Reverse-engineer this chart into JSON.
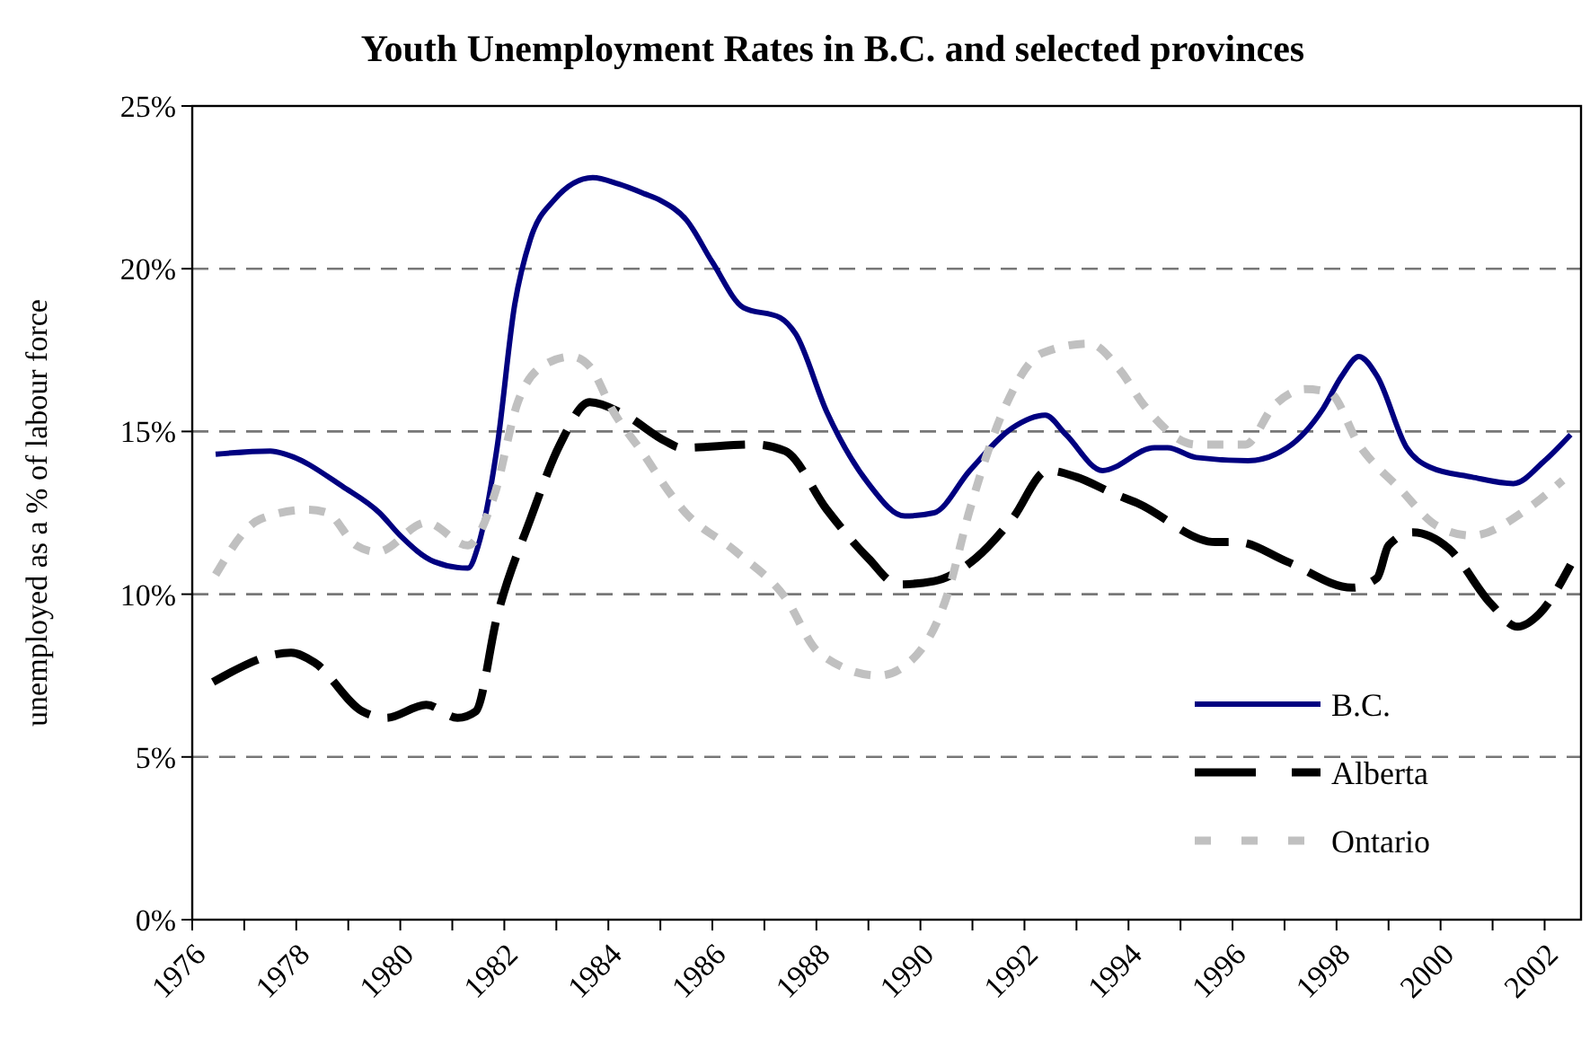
{
  "chart_data": {
    "type": "line",
    "title": "Youth Unemployment Rates in B.C. and selected provinces",
    "ylabel": "unemployed as a % of labour force",
    "xlim": [
      1976,
      2002.7
    ],
    "xticks": [
      1976,
      {
        "value": 1977,
        "label": null
      },
      1978,
      {
        "value": 1979,
        "label": null
      },
      1980,
      {
        "value": 1981,
        "label": null
      },
      1982,
      {
        "value": 1983,
        "label": null
      },
      1984,
      {
        "value": 1985,
        "label": null
      },
      1986,
      {
        "value": 1987,
        "label": null
      },
      1988,
      {
        "value": 1989,
        "label": null
      },
      1990,
      {
        "value": 1991,
        "label": null
      },
      1992,
      {
        "value": 1993,
        "label": null
      },
      1994,
      {
        "value": 1995,
        "label": null
      },
      1996,
      {
        "value": 1997,
        "label": null
      },
      1998,
      {
        "value": 1999,
        "label": null
      },
      2000,
      {
        "value": 2001,
        "label": null
      },
      2002
    ],
    "ylim": [
      0,
      25
    ],
    "yticks": [
      {
        "value": 0,
        "label": "0%"
      },
      {
        "value": 5,
        "label": "5%"
      },
      {
        "value": 10,
        "label": "10%"
      },
      {
        "value": 15,
        "label": "15%"
      },
      {
        "value": 20,
        "label": "20%"
      },
      {
        "value": 25,
        "label": "25%"
      }
    ],
    "grid": "y",
    "legend": "bottom right",
    "marker": "none",
    "series": [
      {
        "name": "B.C.",
        "color": "#000080",
        "line_style": "solid",
        "x": [
          1976.45,
          1977.5,
          1977.8,
          1978.9,
          1979.6,
          1980.0,
          1980.65,
          1981.3,
          1981.5,
          1981.86,
          1982.2,
          1982.5,
          1982.95,
          1983.7,
          1984.2,
          1984.7,
          1985.0,
          1985.5,
          1986.0,
          1986.6,
          1987.3,
          1987.6,
          1988.2,
          1989.0,
          1989.7,
          1990.26,
          1990.95,
          1991.76,
          1992.4,
          1992.8,
          1993.5,
          1994.5,
          1994.75,
          1995.3,
          1996.3,
          1997.05,
          1997.74,
          1998.1,
          1998.43,
          1998.78,
          1999.35,
          1999.8,
          2000.6,
          2001.4,
          2002.0,
          2002.5
        ],
        "values": [
          14.3,
          14.4,
          14.3,
          13.3,
          12.5,
          11.8,
          11.0,
          10.8,
          11.5,
          14.5,
          18.9,
          20.9,
          22.1,
          22.8,
          22.6,
          22.3,
          22.1,
          21.5,
          20.2,
          18.8,
          18.5,
          18.0,
          15.6,
          13.4,
          12.4,
          12.5,
          13.8,
          15.1,
          15.5,
          14.9,
          13.8,
          14.5,
          14.5,
          14.2,
          14.1,
          14.5,
          15.7,
          16.7,
          17.3,
          16.7,
          14.5,
          13.9,
          13.6,
          13.4,
          14.1,
          14.9
        ]
      },
      {
        "name": "Alberta",
        "color": "#000000",
        "line_style": "dashed",
        "x": [
          1976.4,
          1977.9,
          1978.35,
          1979.27,
          1979.73,
          1980.5,
          1981.1,
          1981.45,
          1981.86,
          1982.5,
          1983.07,
          1983.64,
          1984.33,
          1985.1,
          1985.4,
          1986.8,
          1987.4,
          1988.2,
          1989.0,
          1989.57,
          1990.26,
          1991.06,
          1991.76,
          1992.45,
          1993.0,
          1993.7,
          1994.17,
          1995.67,
          1996.1,
          1997.05,
          1998.3,
          1998.78,
          1999.0,
          1999.47,
          2000.16,
          2000.97,
          2001.48,
          2001.9,
          2002.5
        ],
        "values": [
          7.3,
          8.2,
          7.9,
          6.4,
          6.2,
          6.6,
          6.2,
          6.4,
          9.3,
          12.3,
          14.6,
          15.9,
          15.5,
          14.7,
          14.5,
          14.6,
          14.4,
          12.6,
          11.1,
          10.3,
          10.4,
          11.1,
          12.3,
          13.8,
          13.6,
          13.1,
          12.8,
          11.6,
          11.6,
          11.0,
          10.2,
          10.5,
          11.5,
          11.9,
          11.4,
          9.7,
          9.0,
          9.4,
          10.9
        ]
      },
      {
        "name": "Ontario",
        "color": "#c0c0c0",
        "line_style": "dotted",
        "x": [
          1976.45,
          1977.3,
          1978.23,
          1978.6,
          1979.15,
          1979.56,
          1980.5,
          1981.3,
          1981.8,
          1982.26,
          1982.72,
          1983.3,
          1983.64,
          1984.1,
          1984.68,
          1985.14,
          1985.43,
          1986.46,
          1987.4,
          1988.05,
          1989.2,
          1989.7,
          1990.5,
          1990.95,
          1991.64,
          1992.33,
          1993.25,
          1993.83,
          1994.3,
          1995.3,
          1996.25,
          1996.8,
          1997.4,
          1997.86,
          1998.43,
          1999.24,
          1999.93,
          2000.6,
          2001.65,
          2002.35
        ],
        "values": [
          10.6,
          12.3,
          12.6,
          12.5,
          11.5,
          11.3,
          12.2,
          11.5,
          13.0,
          15.9,
          17.0,
          17.3,
          17.0,
          15.6,
          14.3,
          13.2,
          12.6,
          11.3,
          9.9,
          8.2,
          7.5,
          7.8,
          9.9,
          12.6,
          15.8,
          17.4,
          17.7,
          16.9,
          15.8,
          14.6,
          14.6,
          15.8,
          16.3,
          16.2,
          14.6,
          13.2,
          12.1,
          11.8,
          12.6,
          13.5
        ]
      }
    ]
  }
}
